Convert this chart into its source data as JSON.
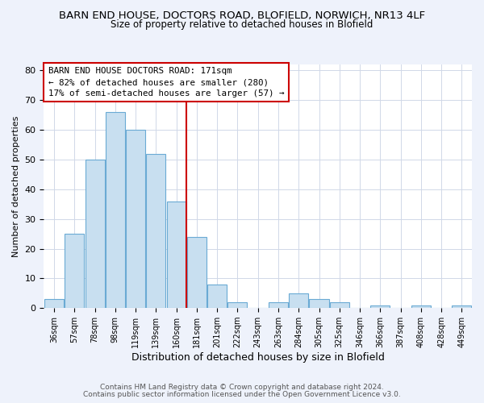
{
  "title": "BARN END HOUSE, DOCTORS ROAD, BLOFIELD, NORWICH, NR13 4LF",
  "subtitle": "Size of property relative to detached houses in Blofield",
  "xlabel": "Distribution of detached houses by size in Blofield",
  "ylabel": "Number of detached properties",
  "bin_labels": [
    "36sqm",
    "57sqm",
    "78sqm",
    "98sqm",
    "119sqm",
    "139sqm",
    "160sqm",
    "181sqm",
    "201sqm",
    "222sqm",
    "243sqm",
    "263sqm",
    "284sqm",
    "305sqm",
    "325sqm",
    "346sqm",
    "366sqm",
    "387sqm",
    "408sqm",
    "428sqm",
    "449sqm"
  ],
  "bar_values": [
    3,
    25,
    50,
    66,
    60,
    52,
    36,
    24,
    8,
    2,
    0,
    2,
    5,
    3,
    2,
    0,
    1,
    0,
    1,
    0,
    1
  ],
  "bar_color": "#c8dff0",
  "bar_edge_color": "#6aaad4",
  "vline_index": 7,
  "vline_color": "#cc0000",
  "annotation_line0": "BARN END HOUSE DOCTORS ROAD: 171sqm",
  "annotation_line1": "← 82% of detached houses are smaller (280)",
  "annotation_line2": "17% of semi-detached houses are larger (57) →",
  "annotation_box_edge": "#cc0000",
  "ylim": [
    0,
    82
  ],
  "yticks": [
    0,
    10,
    20,
    30,
    40,
    50,
    60,
    70,
    80
  ],
  "footer1": "Contains HM Land Registry data © Crown copyright and database right 2024.",
  "footer2": "Contains public sector information licensed under the Open Government Licence v3.0.",
  "bg_color": "#eef2fb",
  "plot_bg_color": "#ffffff",
  "grid_color": "#d0d8e8"
}
